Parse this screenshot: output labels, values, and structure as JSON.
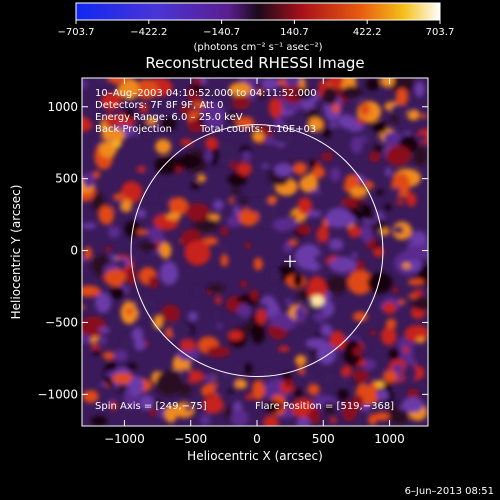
{
  "chart_data": {
    "type": "heatmap",
    "title": "Reconstructed RHESSI Image",
    "xlabel": "Heliocentric X (arcsec)",
    "ylabel": "Heliocentric Y (arcsec)",
    "xlim": [
      -1320,
      1290
    ],
    "ylim": [
      -1220,
      1200
    ],
    "x_ticks": [
      -1000,
      -500,
      0,
      500,
      1000
    ],
    "x_tick_labels": [
      "−1000",
      "−500",
      "0",
      "500",
      "1000"
    ],
    "y_ticks": [
      -1000,
      -500,
      0,
      500,
      1000
    ],
    "y_tick_labels": [
      "−1000",
      "−500",
      "0",
      "500",
      "1000"
    ],
    "colorbar": {
      "tick_values": [
        -703.7,
        -422.2,
        -140.7,
        140.7,
        422.2,
        703.7
      ],
      "tick_labels": [
        "−703.7",
        "−422.2",
        "−140.7",
        "140.7",
        "422.2",
        "703.7"
      ],
      "units": "(photons cm⁻² s⁻¹ asec⁻²)",
      "range": [
        -703.7,
        703.7
      ],
      "colormap": "blue-purple-red-yellow-white"
    },
    "annotations": {
      "time_range": "10–Aug–2003 04:10:52.000 to 04:11:52.000",
      "detectors": "Detectors: 7F 8F 9F, Att 0",
      "energy_range": "Energy Range: 6.0 – 25.0 keV",
      "method": "Back Projection",
      "total_counts": "Total counts: 1.10E+03",
      "spin_axis": "Spin Axis = [249,−75]",
      "flare_position": "Flare Position = [519,−368]"
    },
    "solar_limb": {
      "center": [
        0,
        0
      ],
      "radius_arcsec": 950
    },
    "flare_marker": [
      249,
      -75
    ],
    "grid": false
  },
  "footer_date": "6–Jun–2013 08:51"
}
